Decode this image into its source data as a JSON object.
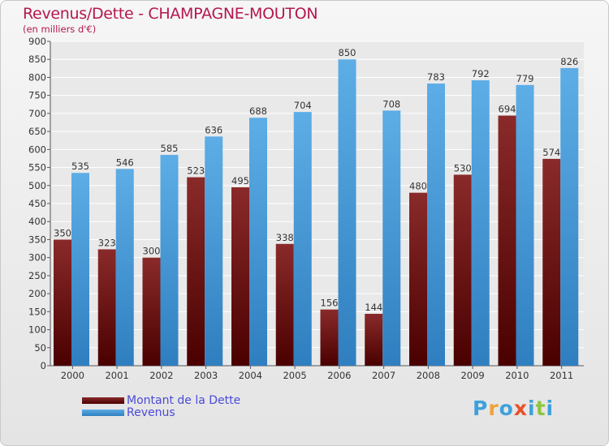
{
  "header": {
    "title": "Revenus/Dette - CHAMPAGNE-MOUTON",
    "subtitle": "(en milliers d'€)"
  },
  "legend": {
    "debt_label": "Montant de la Dette",
    "revenue_label": "Revenus"
  },
  "logo": {
    "letters": [
      "P",
      "r",
      "o",
      "x",
      "i",
      "t",
      "i"
    ],
    "colors": [
      "#3ea1db",
      "#f0a23a",
      "#3ea1db",
      "#e8502a",
      "#3ea1db",
      "#8dc63f",
      "#3ea1db"
    ]
  },
  "colors": {
    "debt_top": "#8a2a2a",
    "debt_bottom": "#4a0000",
    "revenue_top": "#5dade6",
    "revenue_bottom": "#2f7fc0",
    "title": "#b5174f",
    "legend_text": "#4a4ad8"
  },
  "chart_data": {
    "type": "bar",
    "title": "Revenus/Dette - CHAMPAGNE-MOUTON",
    "ylabel": "(en milliers d'€)",
    "xlabel": "",
    "ylim": [
      0,
      900
    ],
    "ytick_step": 50,
    "grid": true,
    "categories": [
      "2000",
      "2001",
      "2002",
      "2003",
      "2004",
      "2005",
      "2006",
      "2007",
      "2008",
      "2009",
      "2010",
      "2011"
    ],
    "series": [
      {
        "name": "Montant de la Dette",
        "values": [
          350,
          323,
          300,
          523,
          495,
          338,
          156,
          144,
          480,
          530,
          694,
          574
        ]
      },
      {
        "name": "Revenus",
        "values": [
          535,
          546,
          585,
          636,
          688,
          704,
          850,
          708,
          783,
          792,
          779,
          826
        ]
      }
    ]
  }
}
